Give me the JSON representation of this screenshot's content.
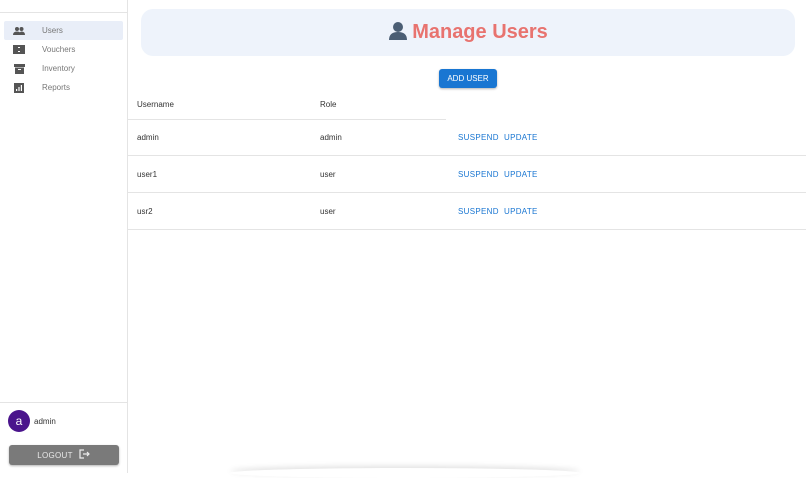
{
  "sidebar": {
    "items": [
      {
        "label": "Users",
        "icon": "people-icon",
        "selected": true
      },
      {
        "label": "Vouchers",
        "icon": "voucher-icon"
      },
      {
        "label": "Inventory",
        "icon": "inventory-icon"
      },
      {
        "label": "Reports",
        "icon": "reports-icon"
      }
    ],
    "user": {
      "avatar_letter": "a",
      "name": "admin",
      "avatar_color": "#4a148c"
    },
    "logout_label": "LOGOUT"
  },
  "header": {
    "title": "Manage Users",
    "title_color": "#e8736f"
  },
  "add_user_label": "ADD USER",
  "table": {
    "columns": [
      "Username",
      "Role"
    ],
    "rows": [
      {
        "username": "admin",
        "role": "admin",
        "suspend": "SUSPEND",
        "update": "UPDATE"
      },
      {
        "username": "user1",
        "role": "user",
        "suspend": "SUSPEND",
        "update": "UPDATE"
      },
      {
        "username": "usr2",
        "role": "user",
        "suspend": "SUSPEND",
        "update": "UPDATE"
      }
    ]
  },
  "accent": "#1976d2"
}
